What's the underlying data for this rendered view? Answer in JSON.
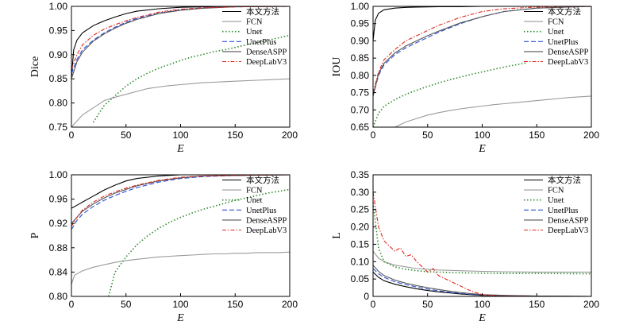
{
  "chart_data": [
    {
      "type": "line",
      "title": "",
      "xlabel": "E",
      "ylabel": "Dice",
      "xlim": [
        0,
        200
      ],
      "ylim": [
        0.75,
        1.0
      ],
      "xticks": [
        0,
        50,
        100,
        150,
        200
      ],
      "yticks": [
        0.75,
        0.8,
        0.85,
        0.9,
        0.95,
        1.0
      ],
      "ytick_labels": [
        "0.75",
        "0.80",
        "0.85",
        "0.90",
        "0.95",
        "1.00"
      ],
      "legend_position": "top-right",
      "series": [
        {
          "name": "本文方法",
          "color": "#000000",
          "dash": "solid",
          "x": [
            0,
            2,
            5,
            10,
            20,
            30,
            40,
            50,
            60,
            80,
            100,
            120,
            150,
            200
          ],
          "y": [
            0.85,
            0.91,
            0.93,
            0.945,
            0.96,
            0.97,
            0.978,
            0.985,
            0.99,
            0.995,
            0.998,
            0.999,
            1.0,
            1.0
          ]
        },
        {
          "name": "FCN",
          "color": "#9a9a9a",
          "dash": "solid",
          "x": [
            0,
            10,
            20,
            30,
            40,
            50,
            60,
            70,
            80,
            90,
            100,
            110,
            120,
            130,
            140,
            150,
            160,
            170,
            180,
            190,
            200
          ],
          "y": [
            0.75,
            0.775,
            0.79,
            0.805,
            0.812,
            0.818,
            0.824,
            0.83,
            0.833,
            0.836,
            0.838,
            0.84,
            0.842,
            0.843,
            0.844,
            0.845,
            0.846,
            0.847,
            0.848,
            0.849,
            0.85
          ]
        },
        {
          "name": "Unet",
          "color": "#2e8b2e",
          "dash": "dotted",
          "x": [
            20,
            30,
            40,
            50,
            60,
            70,
            80,
            90,
            100,
            110,
            120,
            130,
            140,
            150,
            160,
            170,
            180,
            190,
            200
          ],
          "y": [
            0.76,
            0.795,
            0.815,
            0.835,
            0.85,
            0.862,
            0.872,
            0.88,
            0.888,
            0.895,
            0.9,
            0.906,
            0.91,
            0.915,
            0.92,
            0.925,
            0.93,
            0.935,
            0.94
          ]
        },
        {
          "name": "UnetPlus",
          "color": "#2b4fd8",
          "dash": "dashed",
          "x": [
            0,
            5,
            10,
            20,
            30,
            40,
            50,
            60,
            80,
            100,
            120,
            150,
            200
          ],
          "y": [
            0.86,
            0.89,
            0.91,
            0.93,
            0.945,
            0.957,
            0.967,
            0.975,
            0.986,
            0.993,
            0.997,
            0.999,
            1.0
          ]
        },
        {
          "name": "DenseASPP",
          "color": "#555555",
          "dash": "solid",
          "x": [
            0,
            5,
            10,
            20,
            30,
            40,
            50,
            60,
            80,
            100,
            120,
            150,
            200
          ],
          "y": [
            0.85,
            0.885,
            0.905,
            0.928,
            0.943,
            0.955,
            0.965,
            0.973,
            0.985,
            0.992,
            0.996,
            0.999,
            1.0
          ]
        },
        {
          "name": "DeepLabV3",
          "color": "#e0281e",
          "dash": "dashdot",
          "x": [
            0,
            5,
            10,
            20,
            30,
            40,
            50,
            60,
            80,
            100,
            120,
            150,
            200
          ],
          "y": [
            0.87,
            0.9,
            0.92,
            0.94,
            0.953,
            0.962,
            0.97,
            0.977,
            0.988,
            0.994,
            0.997,
            0.999,
            1.0
          ]
        }
      ]
    },
    {
      "type": "line",
      "title": "",
      "xlabel": "E",
      "ylabel": "IOU",
      "xlim": [
        0,
        200
      ],
      "ylim": [
        0.65,
        1.0
      ],
      "xticks": [
        0,
        50,
        100,
        150,
        200
      ],
      "yticks": [
        0.65,
        0.7,
        0.75,
        0.8,
        0.85,
        0.9,
        0.95,
        1.0
      ],
      "ytick_labels": [
        "0.65",
        "0.70",
        "0.75",
        "0.80",
        "0.85",
        "0.90",
        "0.95",
        "1.00"
      ],
      "legend_position": "top-right",
      "series": [
        {
          "name": "本文方法",
          "color": "#000000",
          "dash": "solid",
          "x": [
            0,
            2,
            5,
            10,
            20,
            30,
            40,
            60,
            80,
            100,
            150,
            200
          ],
          "y": [
            0.9,
            0.96,
            0.98,
            0.99,
            0.995,
            0.997,
            0.998,
            0.999,
            0.999,
            1.0,
            1.0,
            1.0
          ]
        },
        {
          "name": "FCN",
          "color": "#9a9a9a",
          "dash": "solid",
          "x": [
            20,
            30,
            40,
            50,
            60,
            70,
            80,
            90,
            100,
            110,
            120,
            130,
            140,
            150,
            160,
            170,
            180,
            190,
            200
          ],
          "y": [
            0.65,
            0.665,
            0.675,
            0.685,
            0.692,
            0.698,
            0.703,
            0.707,
            0.711,
            0.715,
            0.718,
            0.721,
            0.724,
            0.727,
            0.73,
            0.733,
            0.736,
            0.738,
            0.74
          ]
        },
        {
          "name": "Unet",
          "color": "#2e8b2e",
          "dash": "dotted",
          "x": [
            0,
            5,
            10,
            20,
            30,
            40,
            50,
            60,
            70,
            80,
            90,
            100,
            110,
            120,
            130,
            140
          ],
          "y": [
            0.65,
            0.69,
            0.71,
            0.73,
            0.745,
            0.757,
            0.768,
            0.778,
            0.787,
            0.795,
            0.803,
            0.81,
            0.817,
            0.824,
            0.83,
            0.836
          ]
        },
        {
          "name": "UnetPlus",
          "color": "#2b4fd8",
          "dash": "dashed",
          "x": [
            0,
            5,
            10,
            20,
            30,
            40,
            50,
            60,
            80,
            100,
            120,
            150,
            200
          ],
          "y": [
            0.74,
            0.8,
            0.83,
            0.86,
            0.88,
            0.895,
            0.91,
            0.925,
            0.95,
            0.97,
            0.985,
            0.995,
            1.0
          ]
        },
        {
          "name": "DenseASPP",
          "color": "#555555",
          "dash": "solid",
          "x": [
            0,
            5,
            10,
            20,
            30,
            40,
            50,
            60,
            80,
            100,
            120,
            150,
            200
          ],
          "y": [
            0.74,
            0.805,
            0.835,
            0.865,
            0.885,
            0.9,
            0.915,
            0.928,
            0.952,
            0.97,
            0.985,
            0.995,
            1.0
          ]
        },
        {
          "name": "DeepLabV3",
          "color": "#e0281e",
          "dash": "dashdot",
          "x": [
            0,
            5,
            10,
            20,
            30,
            40,
            50,
            60,
            80,
            100,
            120,
            150,
            200
          ],
          "y": [
            0.75,
            0.81,
            0.845,
            0.875,
            0.9,
            0.915,
            0.93,
            0.945,
            0.968,
            0.985,
            0.993,
            0.998,
            1.0
          ]
        }
      ]
    },
    {
      "type": "line",
      "title": "",
      "xlabel": "E",
      "ylabel": "P",
      "xlim": [
        0,
        200
      ],
      "ylim": [
        0.8,
        1.0
      ],
      "xticks": [
        0,
        50,
        100,
        150,
        200
      ],
      "yticks": [
        0.8,
        0.84,
        0.88,
        0.92,
        0.96,
        1.0
      ],
      "ytick_labels": [
        "0.80",
        "0.84",
        "0.88",
        "0.92",
        "0.96",
        "1.00"
      ],
      "legend_position": "top-right",
      "series": [
        {
          "name": "本文方法",
          "color": "#000000",
          "dash": "solid",
          "x": [
            0,
            5,
            10,
            20,
            30,
            40,
            50,
            60,
            80,
            100,
            150,
            200
          ],
          "y": [
            0.945,
            0.95,
            0.955,
            0.965,
            0.975,
            0.983,
            0.99,
            0.994,
            0.998,
            1.0,
            1.0,
            1.0
          ]
        },
        {
          "name": "FCN",
          "color": "#9a9a9a",
          "dash": "solid",
          "x": [
            0,
            3,
            10,
            20,
            30,
            40,
            50,
            60,
            70,
            80,
            90,
            100,
            110,
            120,
            130,
            140,
            150,
            160,
            170,
            180,
            190,
            200
          ],
          "y": [
            0.82,
            0.835,
            0.842,
            0.848,
            0.852,
            0.856,
            0.859,
            0.861,
            0.863,
            0.865,
            0.866,
            0.867,
            0.868,
            0.869,
            0.87,
            0.87,
            0.871,
            0.871,
            0.872,
            0.872,
            0.872,
            0.873
          ]
        },
        {
          "name": "Unet",
          "color": "#2e8b2e",
          "dash": "dotted",
          "x": [
            34,
            40,
            50,
            60,
            70,
            80,
            90,
            100,
            110,
            120,
            130,
            140,
            150,
            160,
            170,
            180,
            190,
            200
          ],
          "y": [
            0.8,
            0.84,
            0.865,
            0.885,
            0.9,
            0.912,
            0.922,
            0.93,
            0.937,
            0.943,
            0.948,
            0.953,
            0.958,
            0.962,
            0.966,
            0.97,
            0.973,
            0.976
          ]
        },
        {
          "name": "UnetPlus",
          "color": "#2b4fd8",
          "dash": "dashed",
          "x": [
            0,
            5,
            10,
            20,
            30,
            40,
            50,
            60,
            80,
            100,
            120,
            150,
            200
          ],
          "y": [
            0.91,
            0.925,
            0.935,
            0.948,
            0.958,
            0.966,
            0.973,
            0.979,
            0.988,
            0.994,
            0.997,
            0.999,
            1.0
          ]
        },
        {
          "name": "DenseASPP",
          "color": "#555555",
          "dash": "solid",
          "x": [
            0,
            5,
            10,
            20,
            30,
            40,
            50,
            60,
            80,
            100,
            120,
            150,
            200
          ],
          "y": [
            0.92,
            0.93,
            0.94,
            0.952,
            0.962,
            0.97,
            0.976,
            0.982,
            0.99,
            0.995,
            0.998,
            0.999,
            1.0
          ]
        },
        {
          "name": "DeepLabV3",
          "color": "#e0281e",
          "dash": "dashdot",
          "x": [
            0,
            5,
            10,
            20,
            30,
            40,
            50,
            60,
            80,
            100,
            120,
            150,
            200
          ],
          "y": [
            0.915,
            0.93,
            0.942,
            0.955,
            0.965,
            0.972,
            0.978,
            0.983,
            0.991,
            0.996,
            0.998,
            0.999,
            1.0
          ]
        }
      ]
    },
    {
      "type": "line",
      "title": "",
      "xlabel": "E",
      "ylabel": "L",
      "xlim": [
        0,
        200
      ],
      "ylim": [
        0,
        0.35
      ],
      "xticks": [
        0,
        50,
        100,
        150,
        200
      ],
      "yticks": [
        0,
        0.05,
        0.1,
        0.15,
        0.2,
        0.25,
        0.3,
        0.35
      ],
      "ytick_labels": [
        "0",
        "0.05",
        "0.10",
        "0.15",
        "0.20",
        "0.25",
        "0.30",
        "0.35"
      ],
      "legend_position": "top-right",
      "series": [
        {
          "name": "本文方法",
          "color": "#000000",
          "dash": "solid",
          "x": [
            0,
            5,
            10,
            20,
            30,
            40,
            50,
            60,
            70,
            80,
            90,
            100,
            120,
            150,
            200
          ],
          "y": [
            0.07,
            0.055,
            0.045,
            0.035,
            0.028,
            0.022,
            0.017,
            0.013,
            0.01,
            0.007,
            0.005,
            0.003,
            0.002,
            0.001,
            0.0
          ]
        },
        {
          "name": "FCN",
          "color": "#9a9a9a",
          "dash": "solid",
          "x": [
            0,
            5,
            10,
            20,
            30,
            40,
            50,
            60,
            80,
            100,
            120,
            150,
            200
          ],
          "y": [
            0.13,
            0.11,
            0.1,
            0.09,
            0.085,
            0.08,
            0.078,
            0.076,
            0.074,
            0.072,
            0.071,
            0.07,
            0.07
          ]
        },
        {
          "name": "Unet",
          "color": "#2e8b2e",
          "dash": "dotted",
          "x": [
            0,
            5,
            10,
            20,
            30,
            40,
            50,
            60,
            80,
            100,
            120,
            150,
            200
          ],
          "y": [
            0.27,
            0.14,
            0.1,
            0.085,
            0.078,
            0.074,
            0.071,
            0.07,
            0.068,
            0.067,
            0.066,
            0.066,
            0.065
          ]
        },
        {
          "name": "UnetPlus",
          "color": "#2b4fd8",
          "dash": "dashed",
          "x": [
            0,
            5,
            10,
            20,
            30,
            40,
            50,
            60,
            70,
            80,
            90,
            100,
            120,
            150,
            200
          ],
          "y": [
            0.08,
            0.065,
            0.055,
            0.042,
            0.034,
            0.027,
            0.021,
            0.016,
            0.012,
            0.009,
            0.006,
            0.004,
            0.002,
            0.001,
            0.0
          ]
        },
        {
          "name": "DenseASPP",
          "color": "#555555",
          "dash": "solid",
          "x": [
            0,
            5,
            10,
            20,
            30,
            40,
            50,
            60,
            70,
            80,
            90,
            100,
            120,
            150,
            200
          ],
          "y": [
            0.09,
            0.072,
            0.06,
            0.047,
            0.038,
            0.031,
            0.025,
            0.02,
            0.015,
            0.011,
            0.008,
            0.005,
            0.003,
            0.001,
            0.0
          ]
        },
        {
          "name": "DeepLabV3",
          "color": "#e0281e",
          "dash": "dashdot",
          "x": [
            0,
            5,
            10,
            20,
            25,
            30,
            35,
            40,
            50,
            55,
            60,
            70,
            80,
            90,
            100,
            120,
            150,
            200
          ],
          "y": [
            0.3,
            0.2,
            0.16,
            0.13,
            0.14,
            0.115,
            0.12,
            0.1,
            0.07,
            0.08,
            0.06,
            0.045,
            0.03,
            0.015,
            0.005,
            0.001,
            0.0,
            0.0
          ]
        }
      ]
    }
  ]
}
